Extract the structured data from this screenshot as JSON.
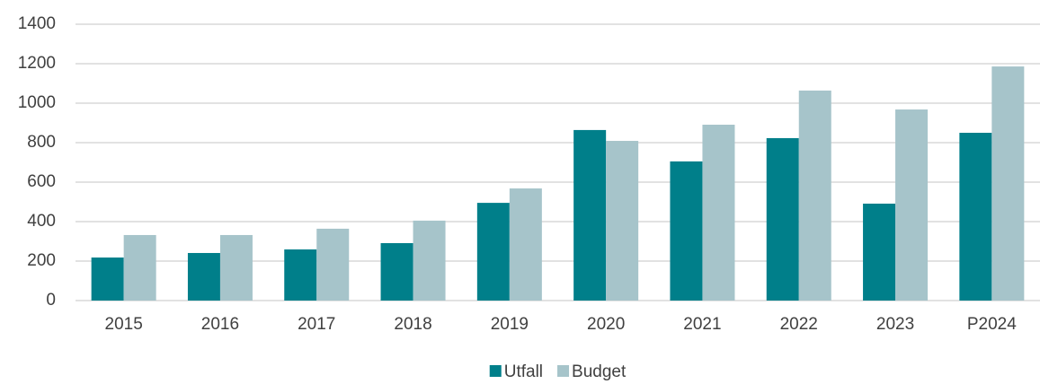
{
  "chart_data": {
    "type": "bar",
    "categories": [
      "2015",
      "2016",
      "2017",
      "2018",
      "2019",
      "2020",
      "2021",
      "2022",
      "2023",
      "P2024"
    ],
    "series": [
      {
        "name": "Utfall",
        "color": "#007f8a",
        "values": [
          218,
          241,
          259,
          291,
          495,
          864,
          705,
          823,
          491,
          850
        ]
      },
      {
        "name": "Budget",
        "color": "#a6c4ca",
        "values": [
          332,
          332,
          364,
          405,
          568,
          809,
          891,
          1064,
          968,
          1186
        ]
      }
    ],
    "ylim": [
      0,
      1400
    ],
    "yticks": [
      0,
      200,
      400,
      600,
      800,
      1000,
      1200,
      1400
    ],
    "grid": true,
    "legend": "bottom"
  }
}
